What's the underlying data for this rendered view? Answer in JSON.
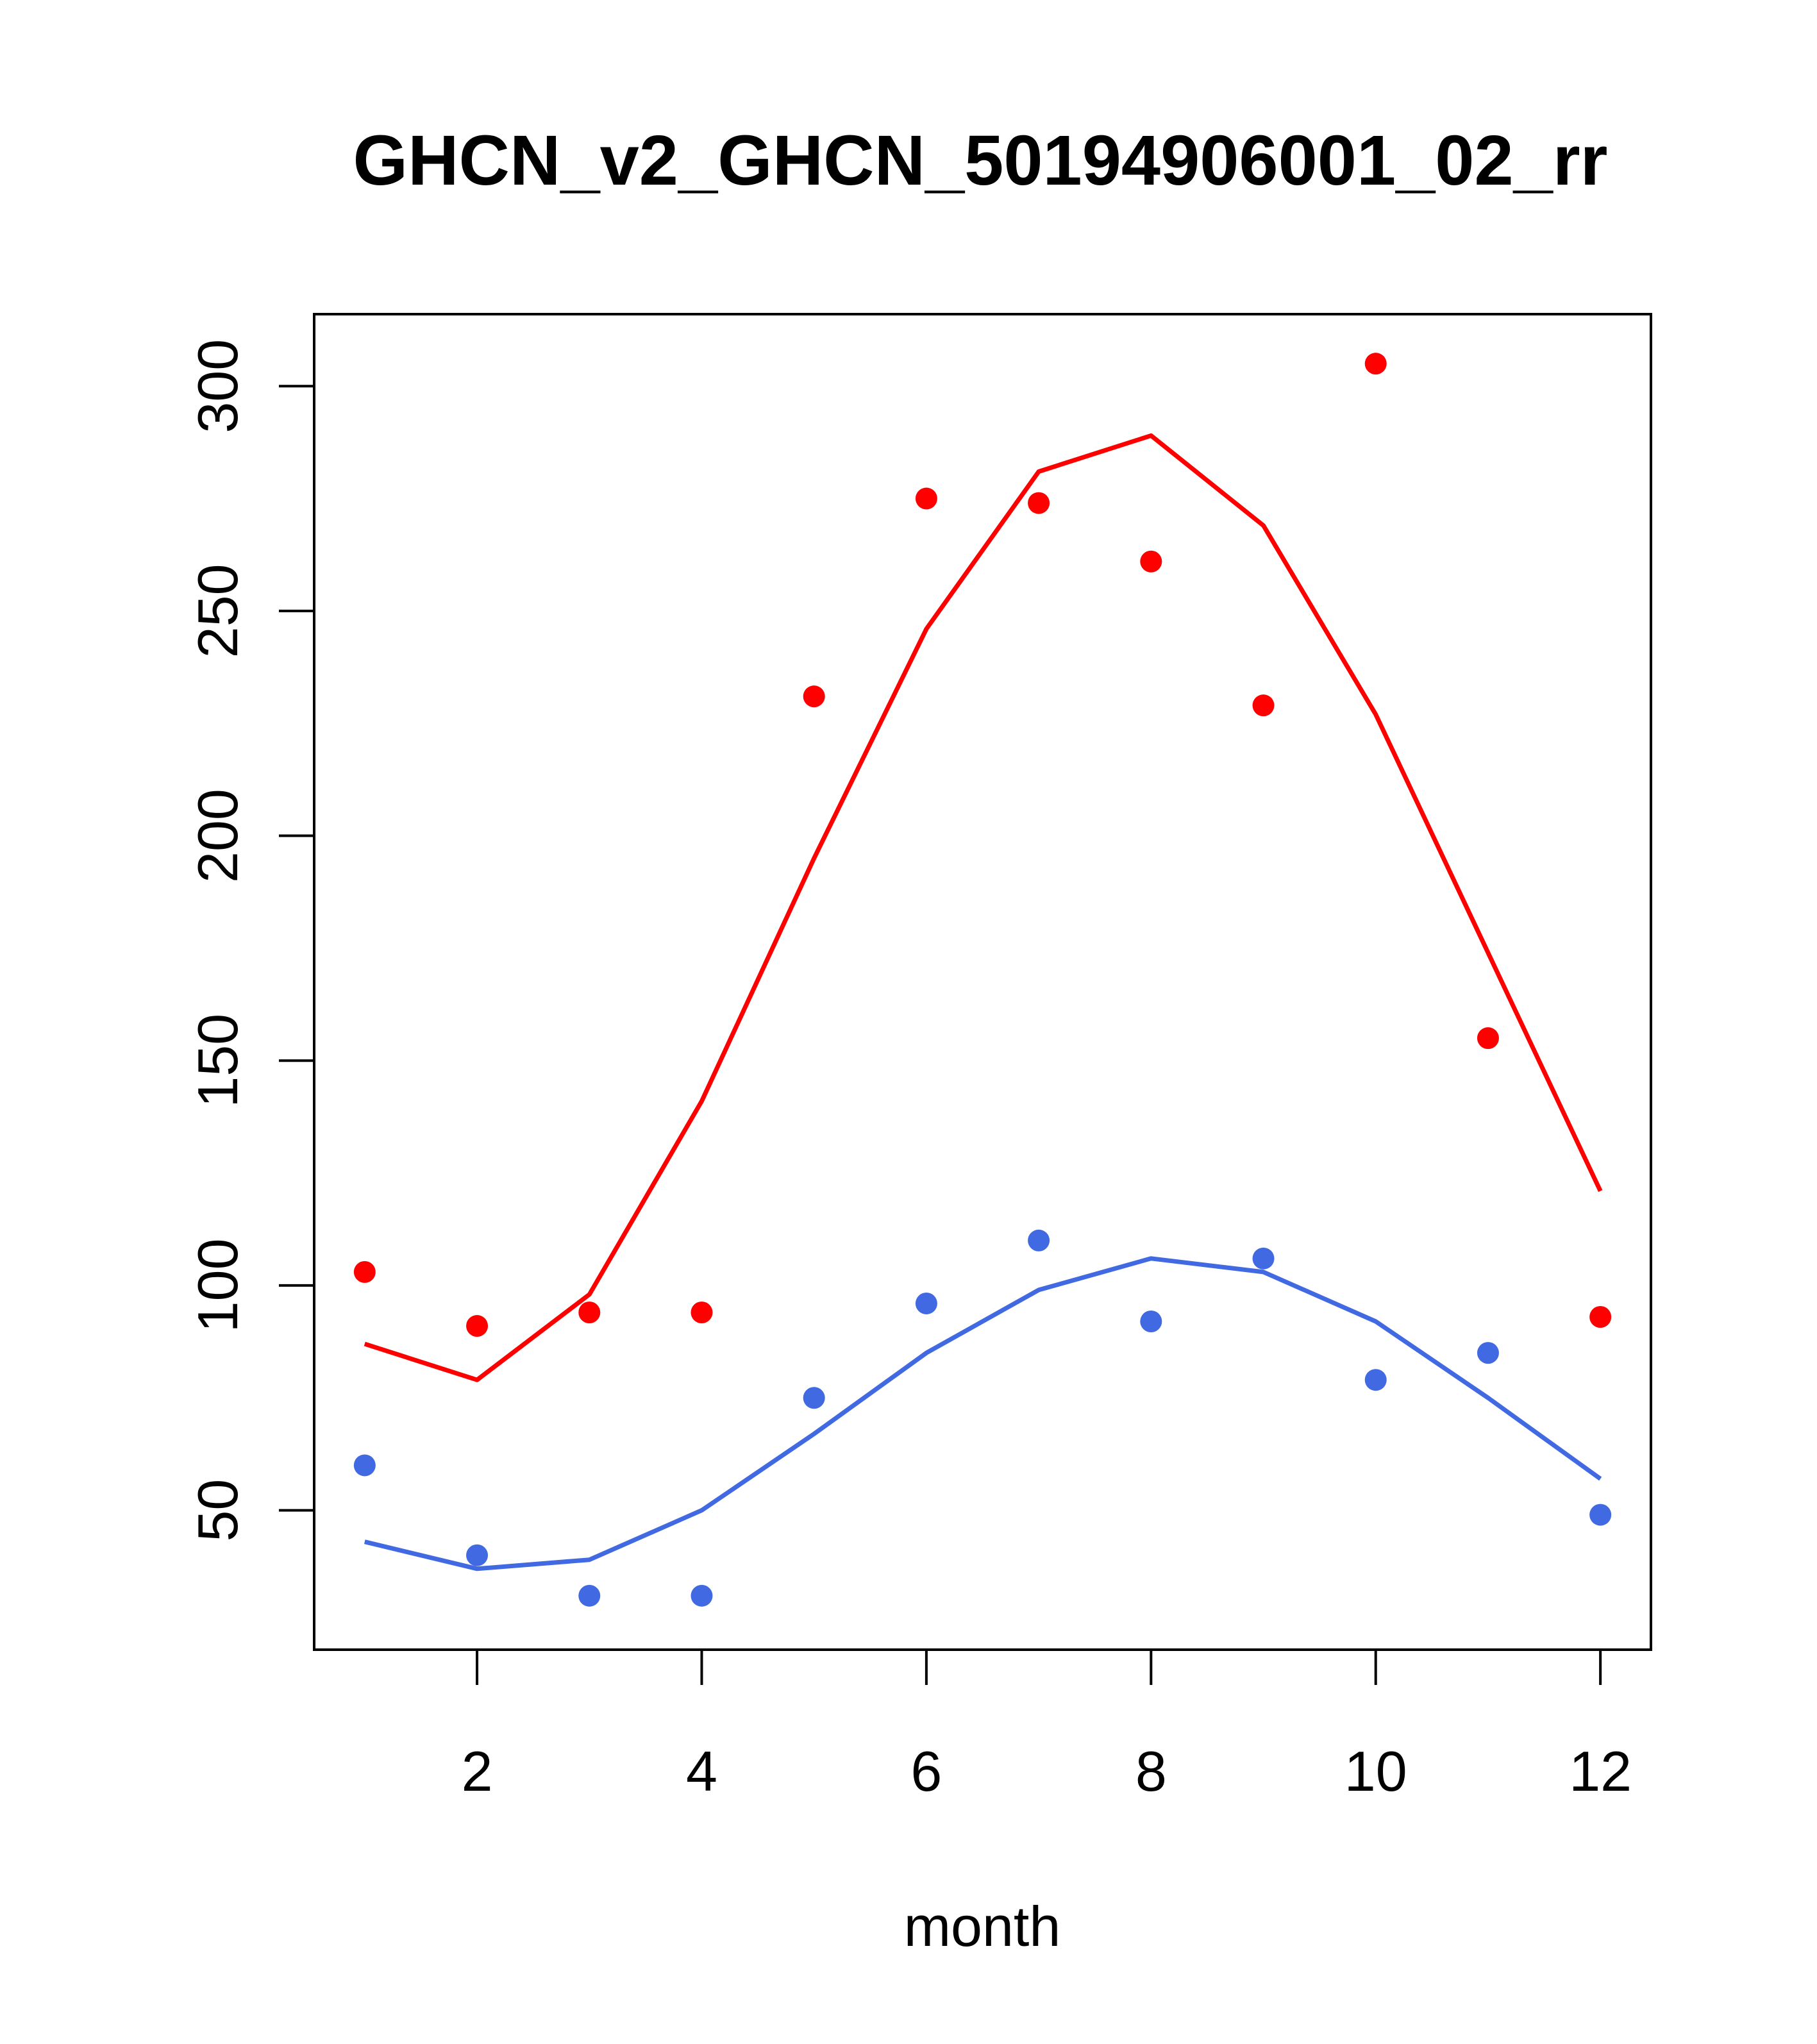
{
  "chart_data": {
    "type": "scatter",
    "title": "GHCN_v2_GHCN_50194906001_02_rr",
    "xlabel": "month",
    "ylabel": "",
    "xlim": [
      0.55,
      12.45
    ],
    "ylim": [
      19,
      316
    ],
    "xticks": [
      2,
      4,
      6,
      8,
      10,
      12
    ],
    "yticks": [
      50,
      100,
      150,
      200,
      250,
      300
    ],
    "grid": false,
    "legend": "none",
    "x": [
      1,
      2,
      3,
      4,
      5,
      6,
      7,
      8,
      9,
      10,
      11,
      12
    ],
    "series": [
      {
        "color": "#ff0000",
        "points": [
          103,
          91,
          94,
          94,
          231,
          275,
          274,
          261,
          229,
          305,
          155,
          93
        ],
        "line": [
          87,
          79,
          98,
          141,
          195,
          246,
          281,
          289,
          269,
          227,
          174,
          121
        ]
      },
      {
        "color": "#4169e1",
        "points": [
          60,
          40,
          31,
          31,
          75,
          96,
          110,
          92,
          106,
          79,
          85,
          49
        ],
        "line": [
          43,
          37,
          39,
          50,
          67,
          85,
          99,
          106,
          103,
          92,
          75,
          57
        ]
      }
    ]
  }
}
